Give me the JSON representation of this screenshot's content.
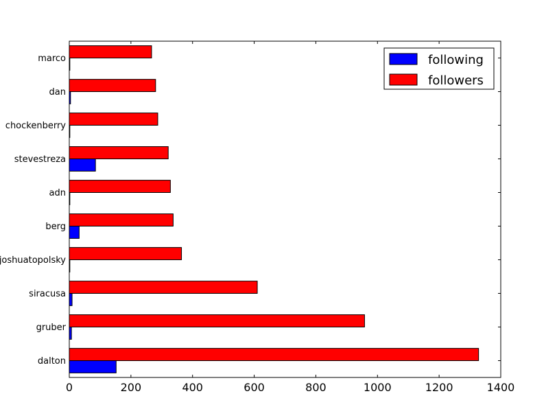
{
  "chart_data": {
    "type": "bar",
    "orientation": "horizontal",
    "categories": [
      "dalton",
      "gruber",
      "siracusa",
      "joshuatopolsky",
      "berg",
      "adn",
      "stevestreza",
      "chockenberry",
      "dan",
      "marco"
    ],
    "series": [
      {
        "name": "following",
        "color": "#0000ff",
        "values": [
          152,
          7,
          9,
          1,
          32,
          1,
          85,
          1,
          4,
          1
        ]
      },
      {
        "name": "followers",
        "color": "#ff0000",
        "values": [
          1328,
          958,
          610,
          364,
          337,
          328,
          321,
          287,
          280,
          267
        ]
      }
    ],
    "xlim": [
      0,
      1400
    ],
    "xticks": [
      "0",
      "200",
      "400",
      "600",
      "800",
      "1000",
      "1200",
      "1400"
    ],
    "xlabel": "",
    "ylabel": "",
    "title": "",
    "grid": false,
    "legend": {
      "position": "top-right",
      "entries": [
        "following",
        "followers"
      ]
    }
  }
}
